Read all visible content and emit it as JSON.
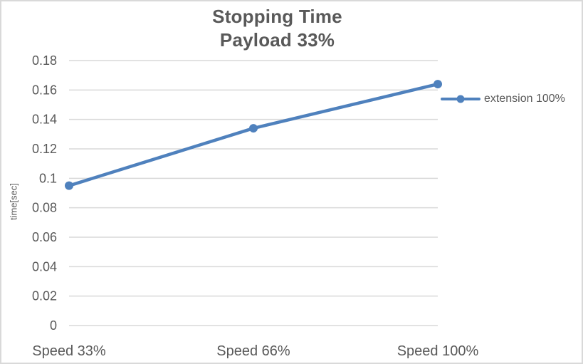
{
  "chart": {
    "title": "Stopping Time",
    "subtitle": "Payload 33%",
    "ylabel": "time[sec]",
    "legend": "extension 100%",
    "colors": {
      "series": "#4F81BD",
      "grid": "#D9D9D9",
      "text": "#595959"
    }
  },
  "chart_data": {
    "type": "line",
    "title": "Stopping Time",
    "subtitle": "Payload 33%",
    "xlabel": "",
    "ylabel": "time[sec]",
    "categories": [
      "Speed 33%",
      "Speed 66%",
      "Speed 100%"
    ],
    "series": [
      {
        "name": "extension 100%",
        "values": [
          0.095,
          0.134,
          0.164
        ]
      }
    ],
    "ylim": [
      0,
      0.18
    ],
    "ytick_step": 0.02,
    "ytick_labels": [
      "0",
      "0.02",
      "0.04",
      "0.06",
      "0.08",
      "0.1",
      "0.12",
      "0.14",
      "0.16",
      "0.18"
    ],
    "grid": true,
    "legend_position": "right",
    "marker": "circle"
  }
}
